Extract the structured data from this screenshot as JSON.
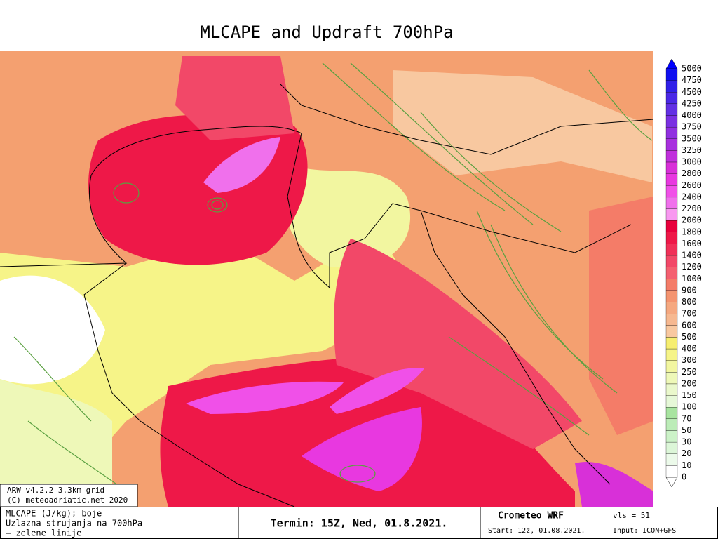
{
  "header": {
    "title": "MLCAPE and Updraft 700hPa"
  },
  "colorbar": {
    "levels": [
      5000,
      4750,
      4500,
      4250,
      4000,
      3750,
      3500,
      3250,
      3000,
      2800,
      2600,
      2400,
      2200,
      2000,
      1800,
      1600,
      1400,
      1200,
      1000,
      900,
      800,
      700,
      600,
      500,
      400,
      300,
      250,
      200,
      150,
      100,
      70,
      50,
      30,
      20,
      10,
      0
    ],
    "colors": [
      "#1010f0",
      "#3020e8",
      "#4a28e6",
      "#6230e4",
      "#7a30e2",
      "#9030e0",
      "#a830de",
      "#c030dc",
      "#d830d8",
      "#e838e0",
      "#f050e8",
      "#f070ec",
      "#f898f0",
      "#e8003c",
      "#ee1848",
      "#f03058",
      "#f24868",
      "#f46070",
      "#f47c68",
      "#f49470",
      "#f5a880",
      "#f6b890",
      "#f8c8a0",
      "#f6ee70",
      "#f6f488",
      "#f2f6a0",
      "#eef8b8",
      "#eaf8cc",
      "#e6f8d8",
      "#a8e4a0",
      "#bcecb8",
      "#ccf2c8",
      "#dcf6d8",
      "#ecfaea",
      "#ffffff"
    ]
  },
  "info_box": {
    "line1": "ARW v4.2.2 3.3km grid",
    "line2": "(C) meteoadriatic.net 2020"
  },
  "footer": {
    "legend1": "MLCAPE (J/kg); boje",
    "legend2": "Uzlazna strujanja na 700hPa",
    "legend3": "— zelene linije",
    "termin": "Termin: 15Z, Ned, 01.8.2021.",
    "brand": "Crometeo WRF",
    "vls": "vls = 51",
    "start": "Start: 12z, 01.08.2021.",
    "input": "Input: ICON+GFS"
  }
}
